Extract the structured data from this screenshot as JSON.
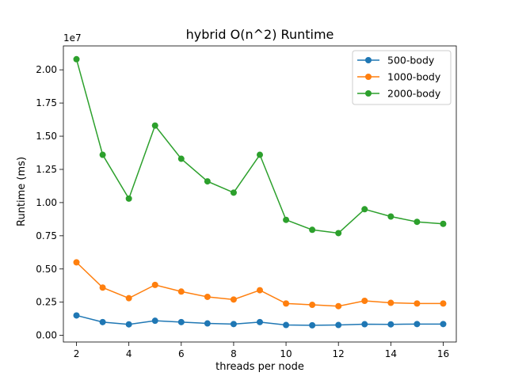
{
  "chart_data": {
    "type": "line",
    "title": "hybrid O(n^2) Runtime",
    "xlabel": "threads per node",
    "ylabel": "Runtime (ms)",
    "y_offset_label": "1e7",
    "x": [
      2,
      3,
      4,
      5,
      6,
      7,
      8,
      9,
      10,
      11,
      12,
      13,
      14,
      15,
      16
    ],
    "xlim": [
      1.5,
      16.5
    ],
    "ylim": [
      -0.05,
      2.18
    ],
    "x_ticks": [
      2,
      4,
      6,
      8,
      10,
      12,
      14,
      16
    ],
    "y_ticks": [
      0.0,
      0.25,
      0.5,
      0.75,
      1.0,
      1.25,
      1.5,
      1.75,
      2.0
    ],
    "y_tick_labels": [
      "0.00",
      "0.25",
      "0.50",
      "0.75",
      "1.00",
      "1.25",
      "1.50",
      "1.75",
      "2.00"
    ],
    "grid": false,
    "legend_position": "top-right",
    "series": [
      {
        "name": "500-body",
        "color": "#1f77b4",
        "values": [
          0.15,
          0.1,
          0.083,
          0.11,
          0.1,
          0.09,
          0.085,
          0.1,
          0.078,
          0.076,
          0.078,
          0.084,
          0.083,
          0.085,
          0.085
        ]
      },
      {
        "name": "1000-body",
        "color": "#ff7f0e",
        "values": [
          0.55,
          0.36,
          0.28,
          0.38,
          0.33,
          0.29,
          0.27,
          0.34,
          0.24,
          0.23,
          0.22,
          0.26,
          0.245,
          0.24,
          0.24
        ]
      },
      {
        "name": "2000-body",
        "color": "#2ca02c",
        "values": [
          2.08,
          1.36,
          1.03,
          1.58,
          1.33,
          1.16,
          1.075,
          1.36,
          0.87,
          0.795,
          0.77,
          0.95,
          0.895,
          0.855,
          0.84
        ]
      }
    ]
  }
}
